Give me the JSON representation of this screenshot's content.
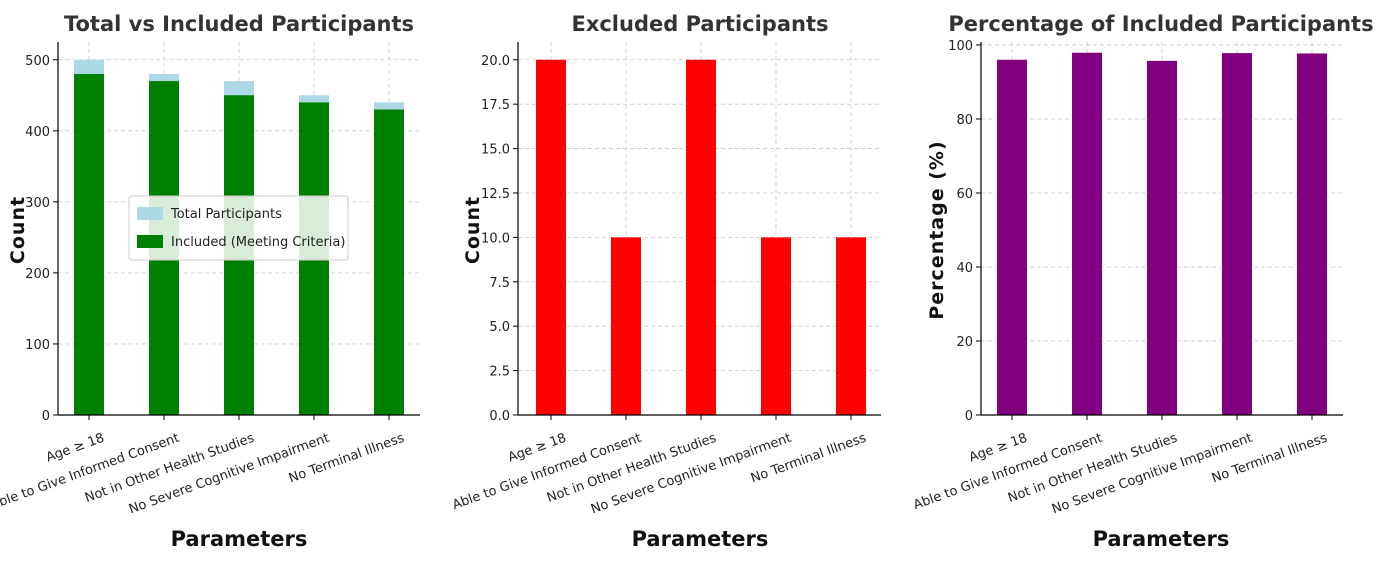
{
  "chart_data": [
    {
      "type": "bar",
      "title": "Total vs Included Participants",
      "xlabel": "Parameters",
      "ylabel": "Count",
      "categories": [
        "Age ≥ 18",
        "Able to Give Informed Consent",
        "Not in Other Health Studies",
        "No Severe Cognitive Impairment",
        "No Terminal Illness"
      ],
      "series": [
        {
          "name": "Total Participants",
          "color": "#add8e6",
          "values": [
            500,
            480,
            470,
            450,
            440
          ]
        },
        {
          "name": "Included (Meeting Criteria)",
          "color": "#008000",
          "values": [
            480,
            470,
            450,
            440,
            430
          ]
        }
      ],
      "ylim": [
        0,
        525
      ],
      "yticks": [
        0,
        100,
        200,
        300,
        400,
        500
      ],
      "ytick_labels": [
        "0",
        "100",
        "200",
        "300",
        "400",
        "500"
      ],
      "grid": true,
      "legend": "center-left"
    },
    {
      "type": "bar",
      "title": "Excluded Participants",
      "xlabel": "Parameters",
      "ylabel": "Count",
      "categories": [
        "Age ≥ 18",
        "Able to Give Informed Consent",
        "Not in Other Health Studies",
        "No Severe Cognitive Impairment",
        "No Terminal Illness"
      ],
      "series": [
        {
          "color": "#ff0000",
          "values": [
            20,
            10,
            20,
            10,
            10
          ]
        }
      ],
      "ylim": [
        0,
        21
      ],
      "yticks": [
        0,
        2.5,
        5,
        7.5,
        10,
        12.5,
        15,
        17.5,
        20
      ],
      "ytick_labels": [
        "0.0",
        "2.5",
        "5.0",
        "7.5",
        "10.0",
        "12.5",
        "15.0",
        "17.5",
        "20.0"
      ],
      "grid": true
    },
    {
      "type": "bar",
      "title": "Percentage of Included Participants",
      "xlabel": "Parameters",
      "ylabel": "Percentage (%)",
      "categories": [
        "Age ≥ 18",
        "Able to Give Informed Consent",
        "Not in Other Health Studies",
        "No Severe Cognitive Impairment",
        "No Terminal Illness"
      ],
      "series": [
        {
          "color": "#800080",
          "values": [
            96,
            97.9,
            95.7,
            97.8,
            97.7
          ]
        }
      ],
      "ylim": [
        0,
        100.8
      ],
      "yticks": [
        0,
        20,
        40,
        60,
        80,
        100
      ],
      "ytick_labels": [
        "0",
        "20",
        "40",
        "60",
        "80",
        "100"
      ],
      "grid": true
    }
  ]
}
